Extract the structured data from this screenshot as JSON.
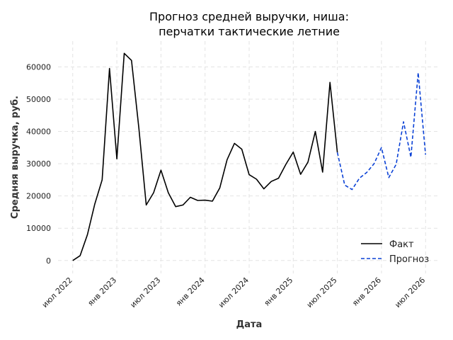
{
  "chart_data": {
    "type": "line",
    "title_line1": "Прогноз средней выручки, ниша:",
    "title_line2": "перчатки тактические летние",
    "xlabel": "Дата",
    "ylabel": "Средняя выручка, руб.",
    "x_ticks": [
      {
        "date": "2022-07",
        "label": "июл 2022"
      },
      {
        "date": "2023-01",
        "label": "янв 2023"
      },
      {
        "date": "2023-07",
        "label": "июл 2023"
      },
      {
        "date": "2024-01",
        "label": "янв 2024"
      },
      {
        "date": "2024-07",
        "label": "июл 2024"
      },
      {
        "date": "2025-01",
        "label": "янв 2025"
      },
      {
        "date": "2025-07",
        "label": "июл 2025"
      },
      {
        "date": "2026-01",
        "label": "янв 2026"
      },
      {
        "date": "2026-07",
        "label": "июл 2026"
      }
    ],
    "y_ticks": [
      0,
      10000,
      20000,
      30000,
      40000,
      50000,
      60000
    ],
    "xlim": [
      "2022-05",
      "2026-09"
    ],
    "ylim": [
      -4000,
      68000
    ],
    "grid": true,
    "legend_position": "lower-right",
    "series": [
      {
        "name": "Факт",
        "color": "#000000",
        "style": "solid",
        "points": [
          [
            "2022-07",
            0
          ],
          [
            "2022-08",
            1500
          ],
          [
            "2022-09",
            8000
          ],
          [
            "2022-10",
            17500
          ],
          [
            "2022-11",
            25000
          ],
          [
            "2022-12",
            59500
          ],
          [
            "2023-01",
            31500
          ],
          [
            "2023-02",
            64200
          ],
          [
            "2023-03",
            62000
          ],
          [
            "2023-04",
            41000
          ],
          [
            "2023-05",
            17200
          ],
          [
            "2023-06",
            21000
          ],
          [
            "2023-07",
            28000
          ],
          [
            "2023-08",
            21000
          ],
          [
            "2023-09",
            16700
          ],
          [
            "2023-10",
            17200
          ],
          [
            "2023-11",
            19600
          ],
          [
            "2023-12",
            18600
          ],
          [
            "2024-01",
            18700
          ],
          [
            "2024-02",
            18400
          ],
          [
            "2024-03",
            22500
          ],
          [
            "2024-04",
            31200
          ],
          [
            "2024-05",
            36300
          ],
          [
            "2024-06",
            34500
          ],
          [
            "2024-07",
            26600
          ],
          [
            "2024-08",
            25200
          ],
          [
            "2024-09",
            22200
          ],
          [
            "2024-10",
            24500
          ],
          [
            "2024-11",
            25500
          ],
          [
            "2024-12",
            29800
          ],
          [
            "2025-01",
            33600
          ],
          [
            "2025-02",
            26700
          ],
          [
            "2025-03",
            30500
          ],
          [
            "2025-04",
            40000
          ],
          [
            "2025-05",
            27400
          ],
          [
            "2025-06",
            55200
          ],
          [
            "2025-07",
            33500
          ]
        ]
      },
      {
        "name": "Прогноз",
        "color": "#0a41d6",
        "style": "dashed",
        "points": [
          [
            "2025-07",
            33500
          ],
          [
            "2025-08",
            23400
          ],
          [
            "2025-09",
            22000
          ],
          [
            "2025-10",
            25500
          ],
          [
            "2025-11",
            27300
          ],
          [
            "2025-12",
            30000
          ],
          [
            "2026-01",
            35000
          ],
          [
            "2026-02",
            25700
          ],
          [
            "2026-03",
            29800
          ],
          [
            "2026-04",
            43000
          ],
          [
            "2026-05",
            32000
          ],
          [
            "2026-06",
            58200
          ],
          [
            "2026-07",
            32800
          ]
        ]
      }
    ]
  }
}
